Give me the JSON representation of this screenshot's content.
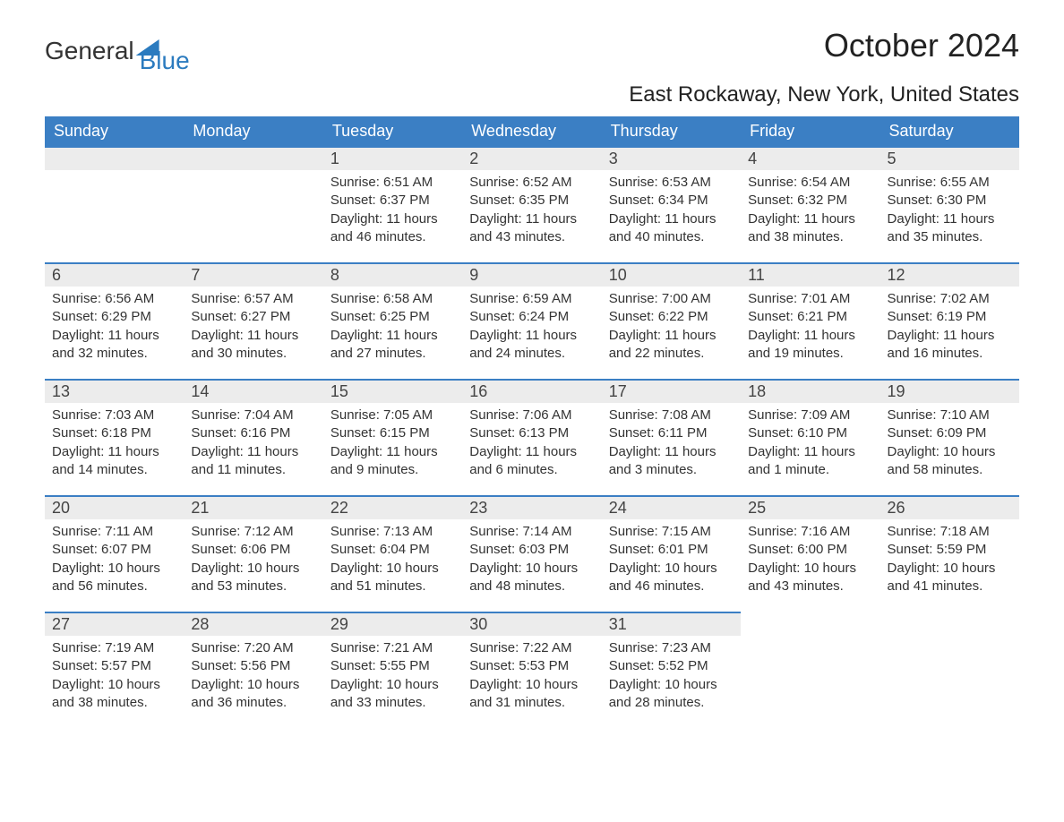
{
  "brand": {
    "part1": "General",
    "part2": "Blue"
  },
  "title": "October 2024",
  "location": "East Rockaway, New York, United States",
  "colors": {
    "header_bg": "#3b7fc4",
    "header_text": "#ffffff",
    "daynum_bg": "#ececec",
    "daynum_border": "#3b7fc4",
    "body_text": "#333333",
    "brand_blue": "#2b7bbf",
    "page_bg": "#ffffff"
  },
  "typography": {
    "title_fontsize": 36,
    "location_fontsize": 24,
    "header_fontsize": 18,
    "daynum_fontsize": 18,
    "body_fontsize": 15
  },
  "weekdays": [
    "Sunday",
    "Monday",
    "Tuesday",
    "Wednesday",
    "Thursday",
    "Friday",
    "Saturday"
  ],
  "weeks": [
    [
      null,
      null,
      {
        "n": "1",
        "sunrise": "6:51 AM",
        "sunset": "6:37 PM",
        "daylight": "11 hours and 46 minutes."
      },
      {
        "n": "2",
        "sunrise": "6:52 AM",
        "sunset": "6:35 PM",
        "daylight": "11 hours and 43 minutes."
      },
      {
        "n": "3",
        "sunrise": "6:53 AM",
        "sunset": "6:34 PM",
        "daylight": "11 hours and 40 minutes."
      },
      {
        "n": "4",
        "sunrise": "6:54 AM",
        "sunset": "6:32 PM",
        "daylight": "11 hours and 38 minutes."
      },
      {
        "n": "5",
        "sunrise": "6:55 AM",
        "sunset": "6:30 PM",
        "daylight": "11 hours and 35 minutes."
      }
    ],
    [
      {
        "n": "6",
        "sunrise": "6:56 AM",
        "sunset": "6:29 PM",
        "daylight": "11 hours and 32 minutes."
      },
      {
        "n": "7",
        "sunrise": "6:57 AM",
        "sunset": "6:27 PM",
        "daylight": "11 hours and 30 minutes."
      },
      {
        "n": "8",
        "sunrise": "6:58 AM",
        "sunset": "6:25 PM",
        "daylight": "11 hours and 27 minutes."
      },
      {
        "n": "9",
        "sunrise": "6:59 AM",
        "sunset": "6:24 PM",
        "daylight": "11 hours and 24 minutes."
      },
      {
        "n": "10",
        "sunrise": "7:00 AM",
        "sunset": "6:22 PM",
        "daylight": "11 hours and 22 minutes."
      },
      {
        "n": "11",
        "sunrise": "7:01 AM",
        "sunset": "6:21 PM",
        "daylight": "11 hours and 19 minutes."
      },
      {
        "n": "12",
        "sunrise": "7:02 AM",
        "sunset": "6:19 PM",
        "daylight": "11 hours and 16 minutes."
      }
    ],
    [
      {
        "n": "13",
        "sunrise": "7:03 AM",
        "sunset": "6:18 PM",
        "daylight": "11 hours and 14 minutes."
      },
      {
        "n": "14",
        "sunrise": "7:04 AM",
        "sunset": "6:16 PM",
        "daylight": "11 hours and 11 minutes."
      },
      {
        "n": "15",
        "sunrise": "7:05 AM",
        "sunset": "6:15 PM",
        "daylight": "11 hours and 9 minutes."
      },
      {
        "n": "16",
        "sunrise": "7:06 AM",
        "sunset": "6:13 PM",
        "daylight": "11 hours and 6 minutes."
      },
      {
        "n": "17",
        "sunrise": "7:08 AM",
        "sunset": "6:11 PM",
        "daylight": "11 hours and 3 minutes."
      },
      {
        "n": "18",
        "sunrise": "7:09 AM",
        "sunset": "6:10 PM",
        "daylight": "11 hours and 1 minute."
      },
      {
        "n": "19",
        "sunrise": "7:10 AM",
        "sunset": "6:09 PM",
        "daylight": "10 hours and 58 minutes."
      }
    ],
    [
      {
        "n": "20",
        "sunrise": "7:11 AM",
        "sunset": "6:07 PM",
        "daylight": "10 hours and 56 minutes."
      },
      {
        "n": "21",
        "sunrise": "7:12 AM",
        "sunset": "6:06 PM",
        "daylight": "10 hours and 53 minutes."
      },
      {
        "n": "22",
        "sunrise": "7:13 AM",
        "sunset": "6:04 PM",
        "daylight": "10 hours and 51 minutes."
      },
      {
        "n": "23",
        "sunrise": "7:14 AM",
        "sunset": "6:03 PM",
        "daylight": "10 hours and 48 minutes."
      },
      {
        "n": "24",
        "sunrise": "7:15 AM",
        "sunset": "6:01 PM",
        "daylight": "10 hours and 46 minutes."
      },
      {
        "n": "25",
        "sunrise": "7:16 AM",
        "sunset": "6:00 PM",
        "daylight": "10 hours and 43 minutes."
      },
      {
        "n": "26",
        "sunrise": "7:18 AM",
        "sunset": "5:59 PM",
        "daylight": "10 hours and 41 minutes."
      }
    ],
    [
      {
        "n": "27",
        "sunrise": "7:19 AM",
        "sunset": "5:57 PM",
        "daylight": "10 hours and 38 minutes."
      },
      {
        "n": "28",
        "sunrise": "7:20 AM",
        "sunset": "5:56 PM",
        "daylight": "10 hours and 36 minutes."
      },
      {
        "n": "29",
        "sunrise": "7:21 AM",
        "sunset": "5:55 PM",
        "daylight": "10 hours and 33 minutes."
      },
      {
        "n": "30",
        "sunrise": "7:22 AM",
        "sunset": "5:53 PM",
        "daylight": "10 hours and 31 minutes."
      },
      {
        "n": "31",
        "sunrise": "7:23 AM",
        "sunset": "5:52 PM",
        "daylight": "10 hours and 28 minutes."
      },
      null,
      null
    ]
  ],
  "labels": {
    "sunrise": "Sunrise:",
    "sunset": "Sunset:",
    "daylight": "Daylight:"
  }
}
